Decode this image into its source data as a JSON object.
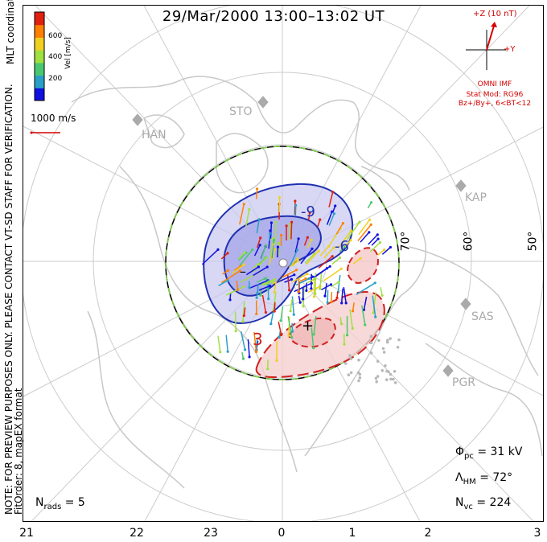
{
  "title": "29/Mar/2000  13:00–13:02  UT",
  "side_notes": {
    "line1": "NOTE: FOR PREVIEW PURPOSES ONLY. PLEASE CONTACT VT-SD STAFF FOR VERIFICATION.",
    "line2": "FitOrder: 8, mapEX format",
    "coords": "MLT coordinates"
  },
  "colorbar": {
    "label": "Vel [m/s]",
    "ticks": [
      "600",
      "400",
      "200"
    ],
    "colors": [
      "#1010e0",
      "#2aa0c8",
      "#4ac870",
      "#a0e040",
      "#f0d020",
      "#ff8000",
      "#e02010"
    ]
  },
  "velocity_scale": "1000 m/s",
  "imf": {
    "z_label": "+Z (10 nT)",
    "y_label": "+Y",
    "source": "OMNI IMF",
    "model": "Stat Mod: RG96",
    "condition": "Bz+/By+, 6<BT<12"
  },
  "stats": {
    "phi_pc_label": "Φ",
    "phi_pc_sub": "pc",
    "phi_pc_value": "=  31  kV",
    "lambda_label": "Λ",
    "lambda_sub": "HM",
    "lambda_value": "=  72°",
    "nvc_label": "N",
    "nvc_sub": "vc",
    "nvc_value": "=  224",
    "nrads_label": "N",
    "nrads_sub": "rads",
    "nrads_value": "=  5"
  },
  "mlt_labels": [
    "21",
    "22",
    "23",
    "0",
    "1",
    "2",
    "3"
  ],
  "lat_labels": [
    "70°",
    "60°",
    "50°"
  ],
  "sites": [
    "STO",
    "HAN",
    "KAP",
    "SAS",
    "PGR"
  ],
  "contours": {
    "negative": [
      "-9",
      "-6"
    ],
    "positive": [
      "3"
    ],
    "min_marker": "–",
    "max_marker": "+"
  }
}
